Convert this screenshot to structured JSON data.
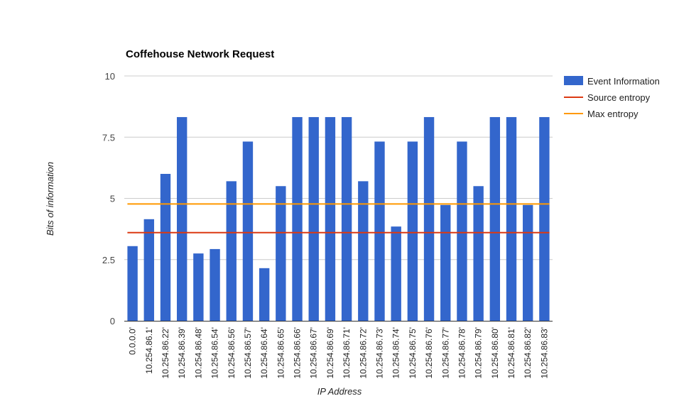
{
  "chart_data": {
    "type": "bar",
    "title": "Coffehouse Network Request",
    "xlabel": "IP Address",
    "ylabel": "Bits of information",
    "ylim": [
      0,
      10
    ],
    "yticks": [
      "0",
      "2.5",
      "5",
      "7.5",
      "10"
    ],
    "ytick_values": [
      0,
      2.5,
      5,
      7.5,
      10
    ],
    "grid": true,
    "legend_position": "right",
    "categories": [
      "0.0.0.0'",
      "10.254.86.1'",
      "10.254.86.22'",
      "10.254.86.39'",
      "10.254.86.48'",
      "10.254.86.54'",
      "10.254.86.56'",
      "10.254.86.57'",
      "10.254.86.64'",
      "10.254.86.65'",
      "10.254.86.66'",
      "10.254.86.67'",
      "10.254.86.69'",
      "10.254.86.71'",
      "10.254.86.72'",
      "10.254.86.73'",
      "10.254.86.74'",
      "10.254.86.75'",
      "10.254.86.76'",
      "10.254.86.77'",
      "10.254.86.78'",
      "10.254.86.79'",
      "10.254.86.80'",
      "10.254.86.81'",
      "10.254.86.82'",
      "10.254.86.83'"
    ],
    "series": [
      {
        "name": "Event Information",
        "kind": "bar",
        "color": "#3366cc",
        "values": [
          3.05,
          4.15,
          6.0,
          8.32,
          2.75,
          2.93,
          5.7,
          7.32,
          2.15,
          5.5,
          8.32,
          8.32,
          8.32,
          8.32,
          5.7,
          7.32,
          3.85,
          7.32,
          8.32,
          4.73,
          7.32,
          5.5,
          8.32,
          8.32,
          4.73,
          8.32
        ]
      },
      {
        "name": "Source entropy",
        "kind": "line",
        "color": "#dc3912",
        "value": 3.6
      },
      {
        "name": "Max entropy",
        "kind": "line",
        "color": "#ff9900",
        "value": 4.77
      }
    ]
  }
}
